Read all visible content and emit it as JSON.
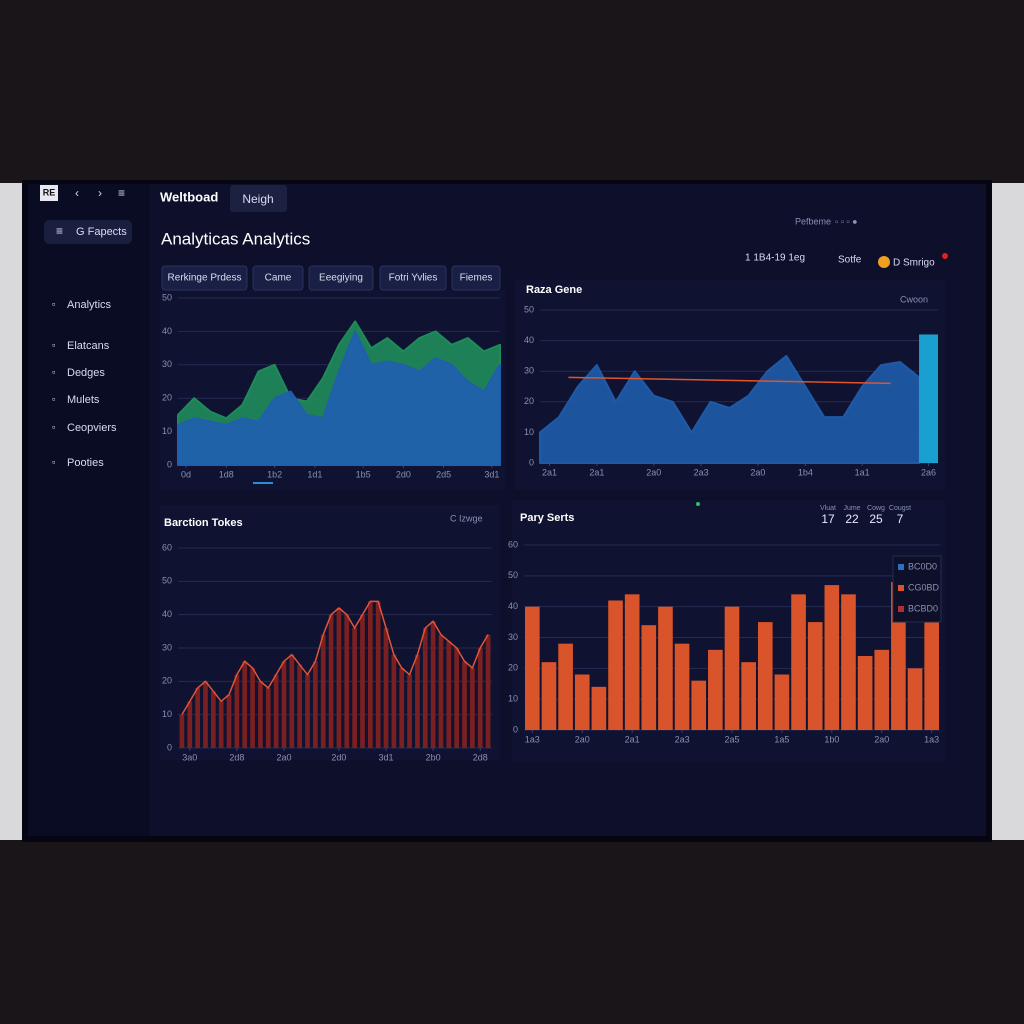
{
  "header": {
    "logo": "RE",
    "brand": "Weltboad",
    "tab": "Neigh",
    "title": "Analyticas Analytics",
    "menu": "G Fapects",
    "profile": "Pefbeme",
    "date": "1 1B4-19 1eg",
    "settings": "Sotfe",
    "user": "D Smrigo"
  },
  "sidebar": {
    "items": [
      "Analytics",
      "Elatcans",
      "Dedges",
      "Mulets",
      "Ceopviers",
      "Pooties"
    ]
  },
  "tabs": [
    "Rerkinge Prdess",
    "Came",
    "Eeegiying",
    "Fotri Yvlies",
    "Fiemes"
  ],
  "chart_data": [
    {
      "type": "area",
      "x": [
        0,
        2,
        4,
        6,
        8,
        10,
        12,
        14,
        16,
        18,
        20,
        22,
        24,
        26,
        28,
        30,
        32,
        34,
        36,
        38,
        40
      ],
      "series": [
        {
          "color": "#1f8a5a",
          "values": [
            15,
            20,
            16,
            14,
            18,
            28,
            30,
            20,
            19,
            26,
            36,
            43,
            35,
            38,
            34,
            38,
            40,
            36,
            38,
            34,
            36
          ]
        },
        {
          "color": "#1f5fae",
          "values": [
            12,
            14,
            13,
            12,
            14,
            13,
            20,
            22,
            15,
            14,
            28,
            40,
            30,
            31,
            30,
            28,
            32,
            30,
            25,
            22,
            30
          ]
        }
      ],
      "xlim": [
        0,
        40
      ],
      "ylim": [
        0,
        50
      ],
      "yticks": [
        0,
        10,
        20,
        30,
        40,
        50
      ],
      "xticks": [
        {
          "value": 1,
          "label": "0d"
        },
        {
          "value": 6,
          "label": "1d8"
        },
        {
          "value": 12,
          "label": "1b2"
        },
        {
          "value": 17,
          "label": "1d1"
        },
        {
          "value": 23,
          "label": "1b5"
        },
        {
          "value": 28,
          "label": "2d0"
        },
        {
          "value": 33,
          "label": "2d5"
        },
        {
          "value": 39,
          "label": "3d1"
        }
      ],
      "grid": true
    },
    {
      "type": "area",
      "title": "Raza Gene",
      "control": "Cwoon",
      "x": [
        0,
        2,
        4,
        6,
        8,
        10,
        12,
        14,
        16,
        18,
        20,
        22,
        24,
        26,
        28,
        30,
        32,
        34,
        36,
        38,
        40
      ],
      "series": [
        {
          "color": "#1e5aa8",
          "values": [
            10,
            15,
            25,
            32,
            20,
            30,
            22,
            20,
            10,
            20,
            18,
            22,
            30,
            35,
            25,
            15,
            15,
            25,
            32,
            33,
            28
          ]
        }
      ],
      "line": {
        "x": [
          3,
          37
        ],
        "values": [
          28,
          26
        ],
        "color": "#e0552a"
      },
      "highlight": {
        "x": [
          40,
          42
        ],
        "value": 42,
        "color": "#1aa0d0"
      },
      "xlim": [
        0,
        42
      ],
      "ylim": [
        0,
        50
      ],
      "yticks": [
        0,
        10,
        20,
        30,
        40,
        50
      ],
      "xticks": [
        {
          "value": 1,
          "label": "2a1"
        },
        {
          "value": 6,
          "label": "2a1"
        },
        {
          "value": 12,
          "label": "2a0"
        },
        {
          "value": 17,
          "label": "2a3"
        },
        {
          "value": 23,
          "label": "2a0"
        },
        {
          "value": 28,
          "label": "1b4"
        },
        {
          "value": 34,
          "label": "1a1"
        },
        {
          "value": 41,
          "label": "2a6"
        }
      ],
      "grid": true
    },
    {
      "type": "bar",
      "title": "Barction Tokes",
      "control": "C Izwge",
      "outline": true,
      "color": "#7a2020",
      "outline_color": "#e0553a",
      "x": [
        0,
        1,
        2,
        3,
        4,
        5,
        6,
        7,
        8,
        9,
        10,
        11,
        12,
        13,
        14,
        15,
        16,
        17,
        18,
        19,
        20,
        21,
        22,
        23,
        24,
        25,
        26,
        27,
        28,
        29,
        30,
        31,
        32,
        33,
        34,
        35,
        36,
        37,
        38,
        39
      ],
      "values": [
        10,
        14,
        18,
        20,
        17,
        14,
        16,
        22,
        26,
        24,
        20,
        18,
        22,
        26,
        28,
        25,
        22,
        26,
        34,
        40,
        42,
        40,
        36,
        40,
        44,
        44,
        36,
        28,
        24,
        22,
        28,
        36,
        38,
        34,
        32,
        30,
        26,
        24,
        30,
        34
      ],
      "xlim": [
        -0.5,
        39.5
      ],
      "ylim": [
        0,
        60
      ],
      "yticks": [
        0,
        10,
        20,
        30,
        40,
        50,
        60
      ],
      "xticks": [
        {
          "value": 1,
          "label": "3a0"
        },
        {
          "value": 7,
          "label": "2d8"
        },
        {
          "value": 13,
          "label": "2a0"
        },
        {
          "value": 20,
          "label": "2d0"
        },
        {
          "value": 26,
          "label": "3d1"
        },
        {
          "value": 32,
          "label": "2b0"
        },
        {
          "value": 38,
          "label": "2d8"
        }
      ],
      "grid": true
    },
    {
      "type": "bar",
      "title": "Pary Serts",
      "color": "#d9542a",
      "x": [
        0,
        1,
        2,
        3,
        4,
        5,
        6,
        7,
        8,
        9,
        10,
        11,
        12,
        13,
        14,
        15,
        16,
        17,
        18,
        19,
        20,
        21,
        22,
        23,
        24
      ],
      "values": [
        40,
        22,
        28,
        18,
        14,
        42,
        44,
        34,
        40,
        28,
        16,
        26,
        40,
        22,
        35,
        18,
        44,
        35,
        47,
        44,
        24,
        26,
        48,
        20,
        40
      ],
      "xlim": [
        -0.5,
        24.5
      ],
      "ylim": [
        0,
        60
      ],
      "yticks": [
        0,
        10,
        20,
        30,
        40,
        50,
        60
      ],
      "xticks": [
        {
          "value": 0,
          "label": "1a3"
        },
        {
          "value": 3,
          "label": "2a0"
        },
        {
          "value": 6,
          "label": "2a1"
        },
        {
          "value": 9,
          "label": "2a3"
        },
        {
          "value": 12,
          "label": "2a5"
        },
        {
          "value": 15,
          "label": "1a5"
        },
        {
          "value": 18,
          "label": "1b0"
        },
        {
          "value": 21,
          "label": "2a0"
        },
        {
          "value": 24,
          "label": "1a3"
        }
      ],
      "grid": true,
      "legend": [
        {
          "label": "BC0D0",
          "color": "#2a6fc0"
        },
        {
          "label": "CG0BD",
          "color": "#d9542a"
        },
        {
          "label": "BCBD0",
          "color": "#b03030"
        }
      ],
      "stats": [
        {
          "label": "Vluat",
          "value": 17
        },
        {
          "label": "Jume",
          "value": 22
        },
        {
          "label": "Cowg",
          "value": 25
        },
        {
          "label": "Cougst",
          "value": 7
        }
      ]
    }
  ]
}
